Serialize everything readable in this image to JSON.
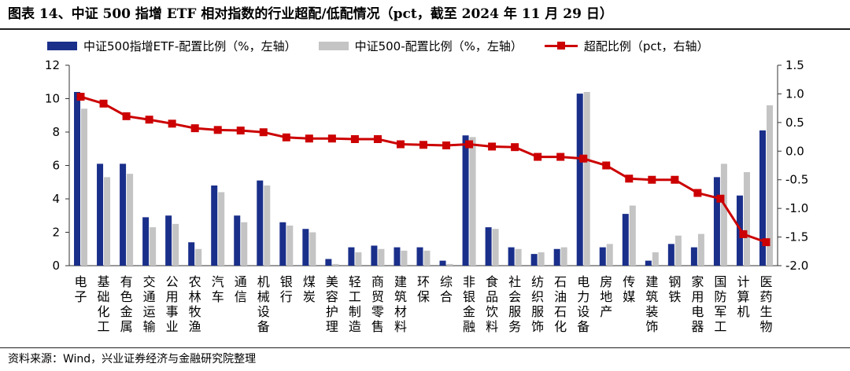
{
  "title": "图表 14、中证 500 指增 ETF 相对指数的行业超配/低配情况（pct，截至 2024 年 11 月 29 日）",
  "source": "资料来源：Wind，兴业证券经济与金融研究院整理",
  "chart_data": {
    "type": "bar",
    "categories": [
      "电子",
      "基础化工",
      "有色金属",
      "交通运输",
      "公用事业",
      "农林牧渔",
      "汽车",
      "通信",
      "机械设备",
      "银行",
      "煤炭",
      "美容护理",
      "轻工制造",
      "商贸零售",
      "建筑材料",
      "环保",
      "综合",
      "非银金融",
      "食品饮料",
      "社会服务",
      "纺织服饰",
      "石油石化",
      "电力设备",
      "房地产",
      "传媒",
      "建筑装饰",
      "钢铁",
      "家用电器",
      "国防军工",
      "计算机",
      "医药生物"
    ],
    "series": [
      {
        "name": "中证500指增ETF-配置比例（%，左轴）",
        "axis": "left",
        "type": "bar",
        "color": "#1a2f8a",
        "values": [
          10.4,
          6.1,
          6.1,
          2.9,
          3.0,
          1.4,
          4.8,
          3.0,
          5.1,
          2.6,
          2.2,
          0.4,
          1.1,
          1.2,
          1.1,
          1.1,
          0.3,
          7.8,
          2.3,
          1.1,
          0.7,
          1.0,
          10.3,
          1.1,
          3.1,
          0.3,
          1.3,
          1.1,
          5.3,
          4.2,
          8.1
        ]
      },
      {
        "name": "中证500-配置比例（%，左轴）",
        "axis": "left",
        "type": "bar",
        "color": "#c4c4c4",
        "values": [
          9.4,
          5.3,
          5.5,
          2.3,
          2.5,
          1.0,
          4.4,
          2.6,
          4.8,
          2.4,
          2.0,
          0.1,
          0.8,
          1.0,
          0.9,
          0.9,
          0.1,
          7.7,
          2.2,
          1.0,
          0.8,
          1.1,
          10.4,
          1.3,
          3.6,
          0.8,
          1.8,
          1.9,
          6.1,
          5.6,
          9.6
        ]
      },
      {
        "name": "超配比例（pct，右轴）",
        "axis": "right",
        "type": "line",
        "color": "#cc0000",
        "values": [
          0.95,
          0.83,
          0.61,
          0.55,
          0.48,
          0.4,
          0.37,
          0.36,
          0.33,
          0.24,
          0.22,
          0.22,
          0.21,
          0.21,
          0.12,
          0.11,
          0.1,
          0.12,
          0.08,
          0.07,
          -0.1,
          -0.1,
          -0.13,
          -0.25,
          -0.48,
          -0.5,
          -0.5,
          -0.73,
          -0.83,
          -1.45,
          -1.59
        ]
      }
    ],
    "y_left": {
      "min": 0,
      "max": 12,
      "ticks": [
        "0",
        "2",
        "4",
        "6",
        "8",
        "10",
        "12"
      ]
    },
    "y_right": {
      "min": -2.0,
      "max": 1.5,
      "ticks": [
        "-2.0",
        "-1.5",
        "-1.0",
        "-0.5",
        "0.0",
        "0.5",
        "1.0",
        "1.5"
      ]
    },
    "legend_position": "top",
    "grid": false
  }
}
